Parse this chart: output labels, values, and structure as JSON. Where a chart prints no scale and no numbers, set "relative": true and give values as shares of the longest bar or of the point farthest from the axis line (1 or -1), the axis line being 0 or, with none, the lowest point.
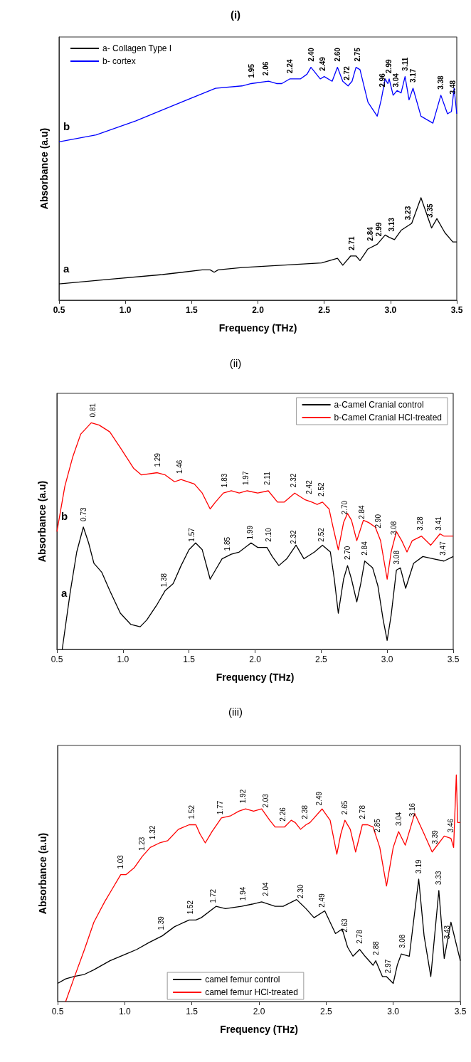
{
  "chart_data": [
    {
      "type": "line",
      "title": "(i)",
      "xlabel": "Frequency (THz)",
      "ylabel": "Absorbance (a.u)",
      "relative": true,
      "tick_labels": "x",
      "legend": "top left",
      "xlim": [
        0.5,
        3.5
      ],
      "xticks": [
        0.5,
        {
          "value": 1,
          "label": "1.0"
        },
        1.5,
        {
          "value": 2,
          "label": "2.0"
        },
        2.5,
        {
          "value": 3,
          "label": "3.0"
        },
        3.5
      ],
      "series": [
        {
          "name": "a- Collagen Type I",
          "color": "#000000",
          "x": [
            0.5,
            0.88,
            1.28,
            1.58,
            1.64,
            1.67,
            1.7,
            1.88,
            2.18,
            2.48,
            2.6,
            2.64,
            2.7,
            2.74,
            2.77,
            2.83,
            2.9,
            2.96,
            2.99,
            3.03,
            3.08,
            3.16,
            3.23,
            3.31,
            3.35,
            3.41,
            3.47,
            3.5
          ],
          "values": [
            0.07,
            0.09,
            0.11,
            0.13,
            0.13,
            0.12,
            0.13,
            0.14,
            0.15,
            0.16,
            0.18,
            0.15,
            0.19,
            0.19,
            0.17,
            0.22,
            0.24,
            0.28,
            0.27,
            0.26,
            0.3,
            0.33,
            0.44,
            0.31,
            0.35,
            0.29,
            0.25,
            0.25
          ]
        },
        {
          "name": "b- cortex",
          "color": "#0000ff",
          "x": [
            0.5,
            0.78,
            1.08,
            1.38,
            1.68,
            1.88,
            1.95,
            2.08,
            2.14,
            2.18,
            2.24,
            2.32,
            2.37,
            2.4,
            2.47,
            2.5,
            2.56,
            2.6,
            2.64,
            2.68,
            2.71,
            2.74,
            2.77,
            2.83,
            2.9,
            2.93,
            2.96,
            2.98,
            2.99,
            3.02,
            3.05,
            3.08,
            3.11,
            3.14,
            3.17,
            3.23,
            3.32,
            3.38,
            3.43,
            3.46,
            3.48,
            3.5
          ],
          "values": [
            0.68,
            0.71,
            0.77,
            0.84,
            0.91,
            0.92,
            0.93,
            0.94,
            0.93,
            0.93,
            0.95,
            0.95,
            0.97,
            1.0,
            0.95,
            0.96,
            0.94,
            1.0,
            0.94,
            0.92,
            0.94,
            1.0,
            0.99,
            0.85,
            0.79,
            0.86,
            0.95,
            0.93,
            0.95,
            0.88,
            0.9,
            0.89,
            0.96,
            0.86,
            0.91,
            0.79,
            0.76,
            0.88,
            0.8,
            0.81,
            0.91,
            0.8
          ]
        }
      ],
      "annotations": [
        "a",
        "b",
        {
          "text": "1.95",
          "x": 1.95,
          "y": 0.93
        },
        {
          "text": "2.06",
          "x": 2.06,
          "y": 0.94
        },
        {
          "text": "2.24",
          "x": 2.24,
          "y": 0.95
        },
        {
          "text": "2.40",
          "x": 2.4,
          "y": 1.0
        },
        {
          "text": "2.49",
          "x": 2.49,
          "y": 0.96
        },
        {
          "text": "2.60",
          "x": 2.6,
          "y": 1.0
        },
        {
          "text": "2.72",
          "x": 2.67,
          "y": 0.92
        },
        {
          "text": "2.75",
          "x": 2.75,
          "y": 1.0
        },
        {
          "text": "2.96",
          "x": 2.94,
          "y": 0.89
        },
        {
          "text": "2.99",
          "x": 2.99,
          "y": 0.95
        },
        {
          "text": "3.04",
          "x": 3.04,
          "y": 0.89
        },
        {
          "text": "3.11",
          "x": 3.11,
          "y": 0.96
        },
        {
          "text": "3.17",
          "x": 3.17,
          "y": 0.91
        },
        {
          "text": "3.38",
          "x": 3.38,
          "y": 0.88
        },
        {
          "text": "3.48",
          "x": 3.47,
          "y": 0.86
        },
        {
          "text": "2.71",
          "x": 2.71,
          "y": 0.19
        },
        {
          "text": "2.84",
          "x": 2.85,
          "y": 0.23
        },
        {
          "text": "2.99",
          "x": 2.91,
          "y": 0.25
        },
        {
          "text": "3.13",
          "x": 3.01,
          "y": 0.27
        },
        {
          "text": "3.23",
          "x": 3.13,
          "y": 0.32
        },
        {
          "text": "3.35",
          "x": 3.3,
          "y": 0.33
        }
      ]
    },
    {
      "type": "line",
      "title": "(ii)",
      "xlabel": "Frequency (THz)",
      "ylabel": "Absorbance (a.u)",
      "relative": true,
      "tick_labels": "x",
      "legend": "top right",
      "xlim": [
        0.5,
        3.5
      ],
      "xticks": [
        0.5,
        {
          "value": 1,
          "label": "1.0"
        },
        1.5,
        {
          "value": 2,
          "label": "2.0"
        },
        2.5,
        {
          "value": 3,
          "label": "3.0"
        },
        3.5
      ],
      "series": [
        {
          "name": "a-Camel Cranial control",
          "color": "#000000",
          "x": [
            0.54,
            0.6,
            0.65,
            0.7,
            0.74,
            0.78,
            0.84,
            0.9,
            0.98,
            1.06,
            1.13,
            1.18,
            1.26,
            1.32,
            1.38,
            1.44,
            1.5,
            1.55,
            1.6,
            1.66,
            1.7,
            1.75,
            1.82,
            1.88,
            1.97,
            2.02,
            2.09,
            2.13,
            2.18,
            2.24,
            2.31,
            2.37,
            2.45,
            2.51,
            2.57,
            2.6,
            2.63,
            2.67,
            2.7,
            2.73,
            2.77,
            2.8,
            2.83,
            2.89,
            2.93,
            2.97,
            3.0,
            3.03,
            3.07,
            3.1,
            3.14,
            3.2,
            3.27,
            3.35,
            3.43,
            3.5
          ],
          "values": [
            0.0,
            0.25,
            0.43,
            0.54,
            0.47,
            0.38,
            0.34,
            0.26,
            0.16,
            0.11,
            0.1,
            0.13,
            0.2,
            0.26,
            0.29,
            0.37,
            0.44,
            0.47,
            0.44,
            0.31,
            0.35,
            0.4,
            0.42,
            0.43,
            0.47,
            0.45,
            0.45,
            0.41,
            0.37,
            0.4,
            0.46,
            0.4,
            0.43,
            0.46,
            0.43,
            0.31,
            0.16,
            0.31,
            0.37,
            0.31,
            0.21,
            0.29,
            0.39,
            0.36,
            0.28,
            0.13,
            0.04,
            0.15,
            0.35,
            0.36,
            0.27,
            0.38,
            0.41,
            0.4,
            0.39,
            0.41
          ]
        },
        {
          "name": "b-Camel Cranial HCl-treated",
          "color": "#ff0000",
          "x": [
            0.5,
            0.56,
            0.62,
            0.68,
            0.76,
            0.82,
            0.9,
            0.98,
            1.08,
            1.14,
            1.26,
            1.32,
            1.39,
            1.44,
            1.54,
            1.6,
            1.66,
            1.7,
            1.76,
            1.82,
            1.88,
            1.94,
            2.02,
            2.1,
            2.17,
            2.22,
            2.3,
            2.38,
            2.43,
            2.47,
            2.51,
            2.56,
            2.59,
            2.63,
            2.67,
            2.7,
            2.73,
            2.77,
            2.82,
            2.86,
            2.91,
            2.95,
            3.0,
            3.03,
            3.07,
            3.11,
            3.15,
            3.19,
            3.26,
            3.33,
            3.4,
            3.43,
            3.5
          ],
          "values": [
            0.52,
            0.72,
            0.85,
            0.95,
            1.0,
            0.99,
            0.96,
            0.89,
            0.8,
            0.77,
            0.78,
            0.77,
            0.74,
            0.75,
            0.73,
            0.69,
            0.62,
            0.65,
            0.69,
            0.7,
            0.69,
            0.7,
            0.69,
            0.7,
            0.65,
            0.65,
            0.69,
            0.66,
            0.65,
            0.64,
            0.65,
            0.62,
            0.54,
            0.44,
            0.56,
            0.6,
            0.57,
            0.48,
            0.57,
            0.56,
            0.54,
            0.48,
            0.31,
            0.43,
            0.52,
            0.48,
            0.43,
            0.48,
            0.5,
            0.46,
            0.51,
            0.5,
            0.5
          ]
        }
      ],
      "annotations": [
        "a",
        "b",
        {
          "text": "0.81",
          "x": 0.77,
          "y": 1.0
        },
        {
          "text": "1.29",
          "x": 1.26,
          "y": 0.78
        },
        {
          "text": "1.46",
          "x": 1.43,
          "y": 0.75
        },
        {
          "text": "1.83",
          "x": 1.77,
          "y": 0.69
        },
        {
          "text": "1.97",
          "x": 1.93,
          "y": 0.7
        },
        {
          "text": "2.11",
          "x": 2.09,
          "y": 0.7
        },
        {
          "text": "2.32",
          "x": 2.29,
          "y": 0.69
        },
        {
          "text": "2.42",
          "x": 2.41,
          "y": 0.66
        },
        {
          "text": "2.52",
          "x": 2.5,
          "y": 0.65
        },
        {
          "text": "2.70",
          "x": 2.68,
          "y": 0.57
        },
        {
          "text": "2.84",
          "x": 2.81,
          "y": 0.55
        },
        {
          "text": "2.90",
          "x": 2.93,
          "y": 0.51
        },
        {
          "text": "3.08",
          "x": 3.05,
          "y": 0.48
        },
        {
          "text": "3.28",
          "x": 3.25,
          "y": 0.5
        },
        {
          "text": "3.41",
          "x": 3.39,
          "y": 0.5
        },
        {
          "text": "0.73",
          "x": 0.7,
          "y": 0.54
        },
        {
          "text": "1.38",
          "x": 1.31,
          "y": 0.25
        },
        {
          "text": "1.57",
          "x": 1.52,
          "y": 0.45
        },
        {
          "text": "1.85",
          "x": 1.79,
          "y": 0.41
        },
        {
          "text": "1.99",
          "x": 1.96,
          "y": 0.46
        },
        {
          "text": "2.10",
          "x": 2.1,
          "y": 0.45
        },
        {
          "text": "2.32",
          "x": 2.29,
          "y": 0.44
        },
        {
          "text": "2.52",
          "x": 2.5,
          "y": 0.45
        },
        {
          "text": "2.70",
          "x": 2.7,
          "y": 0.37
        },
        {
          "text": "2.84",
          "x": 2.83,
          "y": 0.39
        },
        {
          "text": "3.08",
          "x": 3.07,
          "y": 0.35
        },
        {
          "text": "3.47",
          "x": 3.42,
          "y": 0.39
        }
      ]
    },
    {
      "type": "line",
      "title": "(iii)",
      "xlabel": "Frequency (THz)",
      "ylabel": "Absorbance (a.u)",
      "relative": true,
      "tick_labels": "x",
      "legend": "bottom",
      "xlim": [
        0.5,
        3.5
      ],
      "xticks": [
        0.5,
        {
          "value": 1,
          "label": "1.0"
        },
        1.5,
        {
          "value": 2,
          "label": "2.0"
        },
        2.5,
        {
          "value": 3,
          "label": "3.0"
        },
        3.5
      ],
      "series": [
        {
          "name": "camel femur control",
          "color": "#000000",
          "x": [
            0.5,
            0.56,
            0.62,
            0.7,
            0.77,
            0.89,
            1.01,
            1.09,
            1.18,
            1.28,
            1.37,
            1.48,
            1.53,
            1.57,
            1.68,
            1.75,
            1.87,
            1.95,
            2.02,
            2.12,
            2.18,
            2.28,
            2.35,
            2.41,
            2.49,
            2.53,
            2.57,
            2.62,
            2.66,
            2.7,
            2.75,
            2.79,
            2.85,
            2.87,
            2.92,
            2.95,
            3.0,
            3.03,
            3.06,
            3.12,
            3.19,
            3.23,
            3.28,
            3.34,
            3.38,
            3.43,
            3.5
          ],
          "values": [
            0.08,
            0.1,
            0.11,
            0.12,
            0.14,
            0.18,
            0.21,
            0.23,
            0.26,
            0.29,
            0.33,
            0.36,
            0.36,
            0.37,
            0.42,
            0.41,
            0.42,
            0.43,
            0.44,
            0.42,
            0.42,
            0.45,
            0.41,
            0.37,
            0.4,
            0.35,
            0.3,
            0.32,
            0.24,
            0.2,
            0.23,
            0.2,
            0.16,
            0.18,
            0.11,
            0.11,
            0.08,
            0.16,
            0.21,
            0.2,
            0.54,
            0.29,
            0.11,
            0.49,
            0.19,
            0.35,
            0.18
          ]
        },
        {
          "name": "camel femur HCl-treated",
          "color": "#ff0000",
          "x": [
            0.56,
            0.62,
            0.7,
            0.77,
            0.85,
            0.91,
            0.97,
            1.01,
            1.07,
            1.13,
            1.19,
            1.26,
            1.32,
            1.4,
            1.48,
            1.53,
            1.56,
            1.6,
            1.65,
            1.72,
            1.79,
            1.85,
            1.9,
            1.96,
            2.02,
            2.08,
            2.12,
            2.19,
            2.24,
            2.27,
            2.31,
            2.35,
            2.38,
            2.47,
            2.53,
            2.58,
            2.61,
            2.64,
            2.68,
            2.72,
            2.77,
            2.81,
            2.85,
            2.9,
            2.95,
            3.0,
            3.04,
            3.09,
            3.16,
            3.23,
            3.29,
            3.38,
            3.43,
            3.45,
            3.47,
            3.48,
            3.5
          ],
          "values": [
            0.0,
            0.1,
            0.23,
            0.35,
            0.44,
            0.5,
            0.56,
            0.56,
            0.59,
            0.64,
            0.68,
            0.7,
            0.71,
            0.76,
            0.78,
            0.78,
            0.74,
            0.7,
            0.75,
            0.81,
            0.82,
            0.84,
            0.85,
            0.84,
            0.85,
            0.8,
            0.77,
            0.77,
            0.8,
            0.79,
            0.76,
            0.78,
            0.79,
            0.85,
            0.8,
            0.65,
            0.74,
            0.8,
            0.76,
            0.66,
            0.78,
            0.78,
            0.77,
            0.68,
            0.51,
            0.68,
            0.75,
            0.69,
            0.83,
            0.74,
            0.66,
            0.73,
            0.72,
            0.68,
            1.0,
            0.79,
            0.79
          ]
        }
      ],
      "annotations": [
        {
          "text": "1.03",
          "x": 0.97,
          "y": 0.56
        },
        {
          "text": "1.23",
          "x": 1.13,
          "y": 0.64
        },
        {
          "text": "1.32",
          "x": 1.21,
          "y": 0.69
        },
        {
          "text": "1.52",
          "x": 1.5,
          "y": 0.78
        },
        {
          "text": "1.77",
          "x": 1.71,
          "y": 0.8
        },
        {
          "text": "1.92",
          "x": 1.88,
          "y": 0.85
        },
        {
          "text": "2.03",
          "x": 2.05,
          "y": 0.83
        },
        {
          "text": "2.26",
          "x": 2.18,
          "y": 0.77
        },
        {
          "text": "2.38",
          "x": 2.34,
          "y": 0.78
        },
        {
          "text": "2.49",
          "x": 2.45,
          "y": 0.84
        },
        {
          "text": "2.65",
          "x": 2.64,
          "y": 0.8
        },
        {
          "text": "2.78",
          "x": 2.77,
          "y": 0.78
        },
        {
          "text": "2.85",
          "x": 2.88,
          "y": 0.72
        },
        {
          "text": "3.04",
          "x": 3.04,
          "y": 0.75
        },
        {
          "text": "3.16",
          "x": 3.14,
          "y": 0.79
        },
        {
          "text": "3.39",
          "x": 3.31,
          "y": 0.67
        },
        {
          "text": "3.46",
          "x": 3.43,
          "y": 0.72
        },
        {
          "text": "1.39",
          "x": 1.27,
          "y": 0.29
        },
        {
          "text": "1.52",
          "x": 1.49,
          "y": 0.36
        },
        {
          "text": "1.72",
          "x": 1.66,
          "y": 0.41
        },
        {
          "text": "1.94",
          "x": 1.88,
          "y": 0.42
        },
        {
          "text": "2.04",
          "x": 2.05,
          "y": 0.44
        },
        {
          "text": "2.30",
          "x": 2.31,
          "y": 0.43
        },
        {
          "text": "2.49",
          "x": 2.47,
          "y": 0.39
        },
        {
          "text": "2.63",
          "x": 2.64,
          "y": 0.28
        },
        {
          "text": "2.78",
          "x": 2.75,
          "y": 0.23
        },
        {
          "text": "2.88",
          "x": 2.87,
          "y": 0.18
        },
        {
          "text": "2.97",
          "x": 2.96,
          "y": 0.1
        },
        {
          "text": "3.08",
          "x": 3.07,
          "y": 0.21
        },
        {
          "text": "3.19",
          "x": 3.19,
          "y": 0.54
        },
        {
          "text": "3.33",
          "x": 3.34,
          "y": 0.49
        },
        {
          "text": "3.43",
          "x": 3.4,
          "y": 0.25
        }
      ]
    }
  ]
}
